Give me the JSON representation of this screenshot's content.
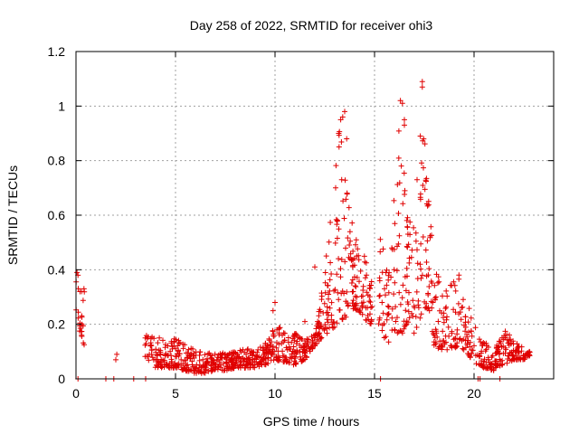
{
  "chart_data": {
    "type": "scatter",
    "title": "Day 258 of 2022, SRMTID for receiver ohi3",
    "xlabel": "GPS time / hours",
    "ylabel": "SRMTID / TECUs",
    "xlim": [
      0,
      24
    ],
    "ylim": [
      0,
      1.2
    ],
    "x_ticks": [
      0,
      5,
      10,
      15,
      20
    ],
    "x_tick_labels": [
      "0",
      "5",
      "10",
      "15",
      "20"
    ],
    "y_ticks": [
      0,
      0.2,
      0.4,
      0.6,
      0.8,
      1.0,
      1.2
    ],
    "y_tick_labels": [
      "0",
      "0.2",
      "0.4",
      "0.6",
      "0.8",
      "1",
      "1.2"
    ],
    "grid": true,
    "marker": "+",
    "series_color": "#e00000",
    "envelope": [
      [
        0.0,
        0.2,
        0.4
      ],
      [
        0.4,
        0.12,
        0.33
      ],
      [
        1.5,
        0.0,
        0.0
      ],
      [
        2.0,
        0.06,
        0.09
      ],
      [
        2.9,
        0.0,
        0.0
      ],
      [
        3.5,
        0.08,
        0.16
      ],
      [
        4.0,
        0.04,
        0.16
      ],
      [
        4.5,
        0.04,
        0.14
      ],
      [
        5.0,
        0.04,
        0.15
      ],
      [
        5.5,
        0.03,
        0.13
      ],
      [
        6.0,
        0.02,
        0.11
      ],
      [
        6.5,
        0.02,
        0.1
      ],
      [
        7.0,
        0.03,
        0.09
      ],
      [
        7.5,
        0.03,
        0.1
      ],
      [
        8.0,
        0.04,
        0.1
      ],
      [
        8.5,
        0.04,
        0.11
      ],
      [
        9.0,
        0.04,
        0.11
      ],
      [
        9.5,
        0.05,
        0.13
      ],
      [
        10.0,
        0.07,
        0.21
      ],
      [
        10.5,
        0.06,
        0.18
      ],
      [
        11.0,
        0.05,
        0.17
      ],
      [
        11.5,
        0.07,
        0.14
      ],
      [
        12.0,
        0.12,
        0.17
      ],
      [
        12.5,
        0.16,
        0.4
      ],
      [
        12.8,
        0.18,
        0.62
      ],
      [
        13.2,
        0.2,
        0.9
      ],
      [
        13.5,
        0.22,
        0.97
      ],
      [
        13.8,
        0.25,
        0.62
      ],
      [
        14.2,
        0.25,
        0.48
      ],
      [
        14.5,
        0.22,
        0.45
      ],
      [
        14.8,
        0.2,
        0.38
      ],
      [
        15.3,
        0.18,
        0.62
      ],
      [
        15.7,
        0.12,
        0.45
      ],
      [
        16.0,
        0.18,
        0.75
      ],
      [
        16.3,
        0.15,
        1.01
      ],
      [
        16.6,
        0.2,
        0.62
      ],
      [
        17.0,
        0.15,
        0.55
      ],
      [
        17.4,
        0.25,
        1.09
      ],
      [
        17.7,
        0.25,
        0.7
      ],
      [
        18.0,
        0.12,
        0.44
      ],
      [
        18.4,
        0.1,
        0.35
      ],
      [
        18.8,
        0.1,
        0.35
      ],
      [
        19.2,
        0.12,
        0.4
      ],
      [
        19.6,
        0.1,
        0.3
      ],
      [
        20.0,
        0.06,
        0.2
      ],
      [
        20.5,
        0.04,
        0.14
      ],
      [
        21.0,
        0.03,
        0.1
      ],
      [
        21.5,
        0.05,
        0.18
      ],
      [
        22.0,
        0.07,
        0.15
      ],
      [
        22.5,
        0.07,
        0.12
      ],
      [
        22.8,
        0.08,
        0.1
      ]
    ],
    "zero_points": [
      0.1,
      1.5,
      1.9,
      2.9,
      3.5,
      15.3,
      20.2,
      20.3,
      21.3
    ],
    "outliers": [
      [
        16.3,
        1.02
      ],
      [
        16.4,
        1.01
      ],
      [
        17.4,
        1.09
      ],
      [
        17.4,
        1.07
      ],
      [
        13.5,
        0.98
      ],
      [
        13.4,
        0.96
      ],
      [
        13.3,
        0.95
      ],
      [
        16.5,
        0.95
      ],
      [
        16.5,
        0.93
      ],
      [
        17.3,
        0.89
      ],
      [
        13.2,
        0.9
      ],
      [
        13.6,
        0.88
      ],
      [
        0.05,
        0.39
      ],
      [
        0.1,
        0.38
      ],
      [
        0.2,
        0.32
      ],
      [
        0.4,
        0.33
      ],
      [
        10.0,
        0.28
      ],
      [
        9.9,
        0.25
      ],
      [
        12.0,
        0.41
      ],
      [
        11.5,
        0.21
      ]
    ],
    "n_points": 1500
  }
}
